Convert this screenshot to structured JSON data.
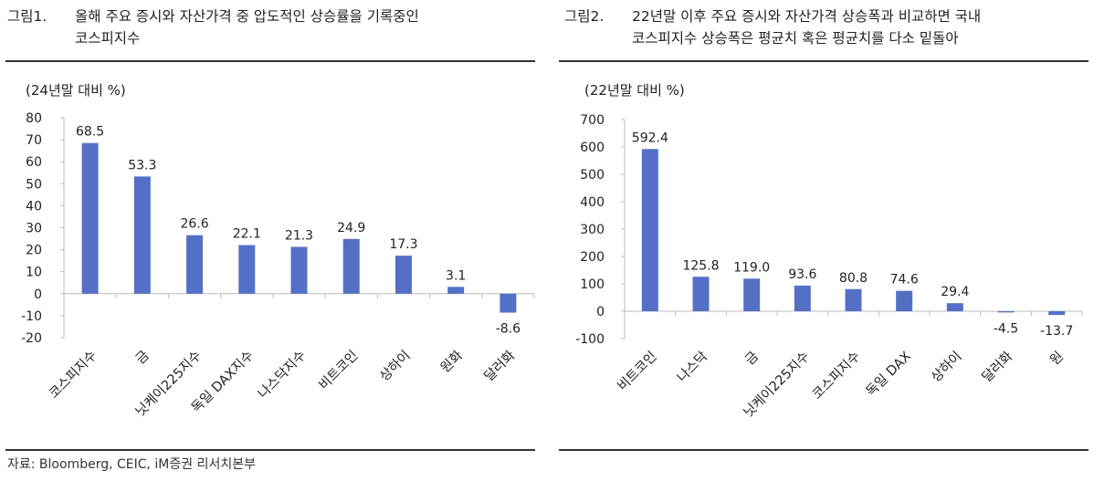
{
  "charts_meta": [
    {
      "label": "그림1.",
      "title_line1": "올해 주요 증시와 자산가격 중 압도적인 상승률을 기록중인",
      "title_line2": "코스피지수",
      "unit": "(24년말 대비 %)"
    },
    {
      "label": "그림2.",
      "title_line1": "22년말 이후 주요 증시와 자산가격 상승폭과 비교하면 국내",
      "title_line2": "코스피지수 상승폭은 평균치 혹은 평균치를 다소 밑돌아",
      "unit": "(22년말 대비 %)"
    }
  ],
  "source": "자료: Bloomberg, CEIC, iM증권 리서치본부",
  "bar_color": "#5470c6",
  "chart_data": [
    {
      "type": "bar",
      "categories": [
        "코스피지수",
        "금",
        "닛케이225지수",
        "독일 DAX지수",
        "나스닥지수",
        "비트코인",
        "상하이",
        "원화",
        "달러화"
      ],
      "values": [
        68.5,
        53.3,
        26.6,
        22.1,
        21.3,
        24.9,
        17.3,
        3.1,
        -8.6
      ],
      "labels": [
        "68.5",
        "53.3",
        "26.6",
        "22.1",
        "21.3",
        "24.9",
        "17.3",
        "3.1",
        "-8.6"
      ],
      "ylim": [
        -20,
        80
      ],
      "yticks": [
        -20,
        -10,
        0,
        10,
        20,
        30,
        40,
        50,
        60,
        70,
        80
      ],
      "grid": false
    },
    {
      "type": "bar",
      "categories": [
        "비트코인",
        "나스닥",
        "금",
        "닛케이225지수",
        "코스피지수",
        "독일 DAX",
        "상하이",
        "달러화",
        "원"
      ],
      "values": [
        592.4,
        125.8,
        119.0,
        93.6,
        80.8,
        74.6,
        29.4,
        -4.5,
        -13.7
      ],
      "labels": [
        "592.4",
        "125.8",
        "119.0",
        "93.6",
        "80.8",
        "74.6",
        "29.4",
        "-4.5",
        "-13.7"
      ],
      "ylim": [
        -100,
        700
      ],
      "yticks": [
        -100,
        0,
        100,
        200,
        300,
        400,
        500,
        600,
        700
      ],
      "grid": false
    }
  ]
}
